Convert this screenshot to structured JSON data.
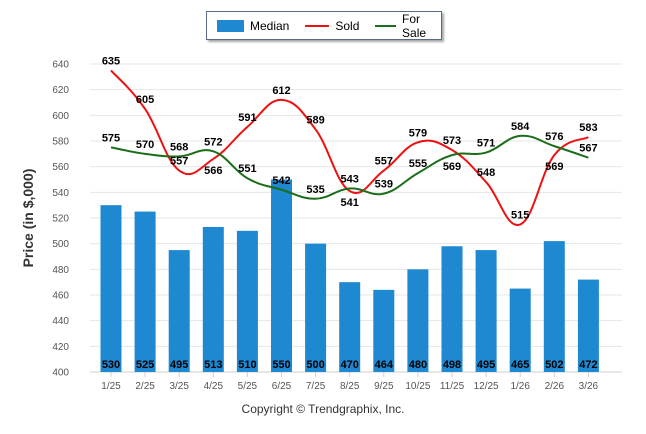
{
  "chart_data": {
    "type": "bar",
    "title": "",
    "xlabel": "",
    "ylabel": "Price (in $,000)",
    "ylim": [
      400,
      640
    ],
    "yticks": [
      400,
      420,
      440,
      460,
      480,
      500,
      520,
      540,
      560,
      580,
      600,
      620,
      640
    ],
    "grid": true,
    "legend_position": "top-center",
    "categories": [
      "1/25",
      "2/25",
      "3/25",
      "4/25",
      "5/25",
      "6/25",
      "7/25",
      "8/25",
      "9/25",
      "10/25",
      "11/25",
      "12/25",
      "1/26",
      "2/26",
      "3/26"
    ],
    "series": [
      {
        "name": "Median",
        "kind": "bar",
        "color": "#1e88d0",
        "values": [
          530,
          525,
          495,
          513,
          510,
          550,
          500,
          470,
          464,
          480,
          498,
          495,
          465,
          502,
          472
        ]
      },
      {
        "name": "Sold",
        "kind": "line",
        "color": "#ee1111",
        "values": [
          635,
          605,
          557,
          566,
          591,
          612,
          589,
          541,
          557,
          579,
          573,
          548,
          515,
          569,
          583
        ]
      },
      {
        "name": "For Sale",
        "kind": "line",
        "color": "#1a6e1a",
        "values": [
          575,
          570,
          568,
          572,
          551,
          542,
          535,
          543,
          539,
          555,
          569,
          571,
          584,
          576,
          567
        ]
      }
    ]
  },
  "legend": {
    "median": "Median",
    "sold": "Sold",
    "for_sale": "For Sale"
  },
  "footer": {
    "copyright": "Copyright © Trendgraphix, Inc."
  }
}
